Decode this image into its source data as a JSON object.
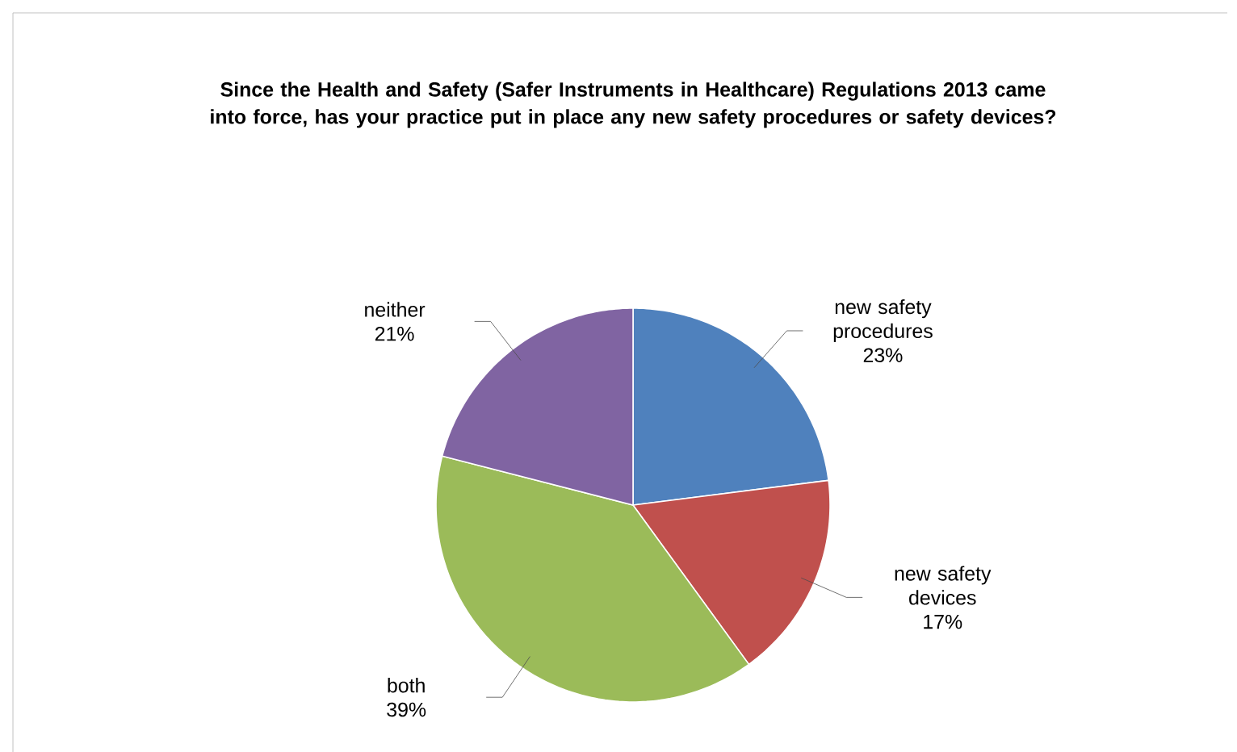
{
  "chart_data": {
    "type": "pie",
    "title": "Since the Health and Safety (Safer Instruments in Healthcare) Regulations 2013 came into force, has your practice put in place any new safety procedures or safety devices?",
    "categories": [
      "new safety procedures",
      "new safety devices",
      "both",
      "neither"
    ],
    "values": [
      23,
      17,
      39,
      21
    ],
    "value_labels": [
      "23%",
      "17%",
      "39%",
      "21%"
    ],
    "colors": [
      "#4f81bd",
      "#c0504d",
      "#9bbb59",
      "#8064a2"
    ]
  }
}
